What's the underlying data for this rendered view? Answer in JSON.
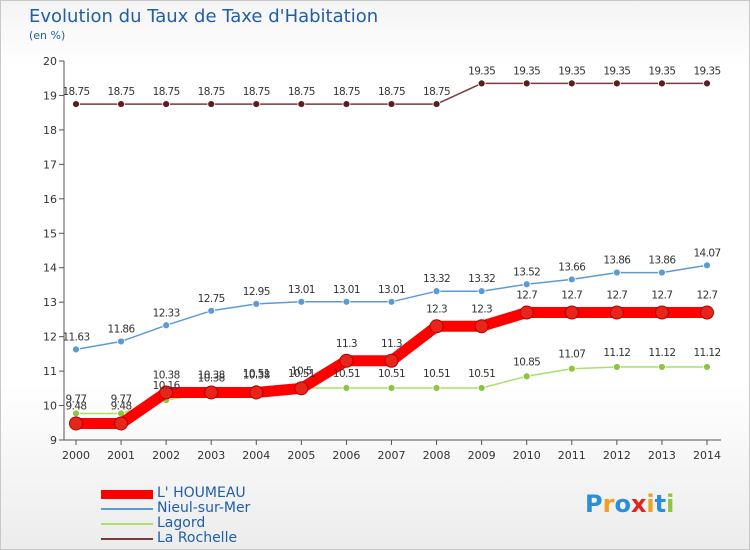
{
  "header": {
    "title": "Evolution du Taux de Taxe d'Habitation",
    "unit": "(en %)"
  },
  "logo": {
    "text": "Proxiti"
  },
  "chart_data": {
    "type": "line",
    "x": [
      "2000",
      "2001",
      "2002",
      "2003",
      "2004",
      "2005",
      "2006",
      "2007",
      "2008",
      "2009",
      "2010",
      "2011",
      "2012",
      "2013",
      "2014"
    ],
    "ylim": [
      9,
      20
    ],
    "yticks": [
      9,
      10,
      11,
      12,
      13,
      14,
      15,
      16,
      17,
      18,
      19,
      20
    ],
    "grid": false,
    "legend_position": "bottom-left",
    "series": [
      {
        "name": "L' HOUMEAU",
        "color": "#ff0000",
        "marker": "#e8251a",
        "values": [
          9.48,
          9.48,
          10.38,
          10.38,
          10.38,
          10.5,
          11.3,
          11.3,
          12.3,
          12.3,
          12.7,
          12.7,
          12.7,
          12.7,
          12.7
        ],
        "labels": [
          "9.48",
          "9.48",
          "10.38",
          "10.38",
          "10.38",
          "10.5",
          "11.3",
          "11.3",
          "12.3",
          "12.3",
          "12.7",
          "12.7",
          "12.7",
          "12.7",
          "12.7"
        ]
      },
      {
        "name": "Nieul-sur-Mer",
        "color": "#5b9bd5",
        "marker": "#5b9bd5",
        "values": [
          11.63,
          11.86,
          12.33,
          12.75,
          12.95,
          13.01,
          13.01,
          13.01,
          13.32,
          13.32,
          13.52,
          13.66,
          13.86,
          13.86,
          14.07
        ],
        "labels": [
          "11.63",
          "11.86",
          "12.33",
          "12.75",
          "12.95",
          "13.01",
          "13.01",
          "13.01",
          "13.32",
          "13.32",
          "13.52",
          "13.66",
          "13.86",
          "13.86",
          "14.07"
        ]
      },
      {
        "name": "Lagord",
        "color": "#a8e06a",
        "marker": "#8cc63f",
        "values": [
          9.77,
          9.77,
          10.16,
          10.38,
          10.51,
          10.51,
          10.51,
          10.51,
          10.51,
          10.51,
          10.85,
          11.07,
          11.12,
          11.12,
          11.12
        ],
        "labels": [
          "9.77",
          "9.77",
          "10.16",
          "10.38",
          "10.51",
          "10.51",
          "10.51",
          "10.51",
          "10.51",
          "10.51",
          "10.85",
          "11.07",
          "11.12",
          "11.12",
          "11.12"
        ]
      },
      {
        "name": "La Rochelle",
        "color": "#7a3b3b",
        "marker": "#5a1e1e",
        "values": [
          18.75,
          18.75,
          18.75,
          18.75,
          18.75,
          18.75,
          18.75,
          18.75,
          18.75,
          19.35,
          19.35,
          19.35,
          19.35,
          19.35,
          19.35
        ],
        "labels": [
          "18.75",
          "18.75",
          "18.75",
          "18.75",
          "18.75",
          "18.75",
          "18.75",
          "18.75",
          "18.75",
          "19.35",
          "19.35",
          "19.35",
          "19.35",
          "19.35",
          "19.35"
        ]
      }
    ]
  }
}
